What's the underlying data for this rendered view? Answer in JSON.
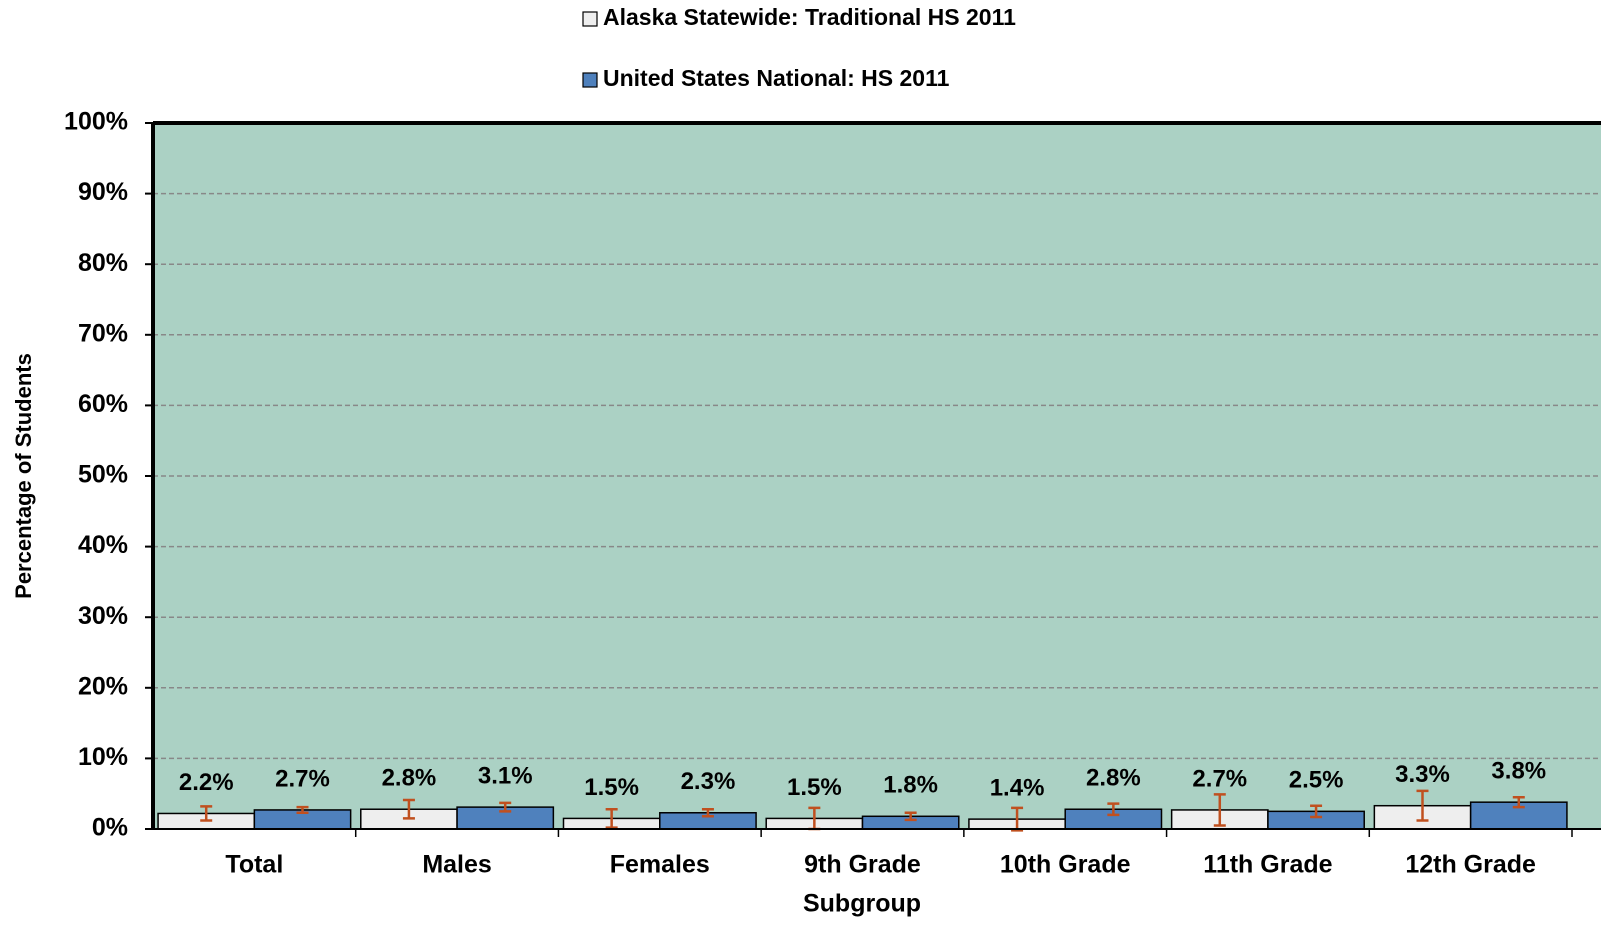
{
  "chart_data": {
    "type": "bar",
    "x_label": "Subgroup",
    "y_label": "Percentage of Students",
    "categories": [
      "Total",
      "Males",
      "Females",
      "9th Grade",
      "10th Grade",
      "11th Grade",
      "12th Grade"
    ],
    "series": [
      {
        "name": "Alaska Statewide: Traditional HS 2011",
        "color": "#eeeeee",
        "values": [
          2.2,
          2.8,
          1.5,
          1.5,
          1.4,
          2.7,
          3.3
        ],
        "value_labels": [
          "2.2%",
          "2.8%",
          "1.5%",
          "1.5%",
          "1.4%",
          "2.7%",
          "3.3%"
        ],
        "errors": [
          1.0,
          1.3,
          1.3,
          1.5,
          1.6,
          2.2,
          2.1
        ]
      },
      {
        "name": "United States National:  HS 2011",
        "color": "#4f81bd",
        "values": [
          2.7,
          3.1,
          2.3,
          1.8,
          2.8,
          2.5,
          3.8
        ],
        "value_labels": [
          "2.7%",
          "3.1%",
          "2.3%",
          "1.8%",
          "2.8%",
          "2.5%",
          "3.8%"
        ],
        "errors": [
          0.4,
          0.6,
          0.5,
          0.5,
          0.8,
          0.8,
          0.7
        ]
      }
    ],
    "error_color": "#c0501f",
    "plot_background": "#abd1c4",
    "ylim": [
      0,
      100
    ],
    "yticks": [
      {
        "value": 0,
        "label": "0%"
      },
      {
        "value": 10,
        "label": "10%"
      },
      {
        "value": 20,
        "label": "20%"
      },
      {
        "value": 30,
        "label": "30%"
      },
      {
        "value": 40,
        "label": "40%"
      },
      {
        "value": 50,
        "label": "50%"
      },
      {
        "value": 60,
        "label": "60%"
      },
      {
        "value": 70,
        "label": "70%"
      },
      {
        "value": 80,
        "label": "80%"
      },
      {
        "value": 90,
        "label": "90%"
      },
      {
        "value": 100,
        "label": "100%"
      }
    ],
    "grid": true,
    "legend": "top"
  }
}
